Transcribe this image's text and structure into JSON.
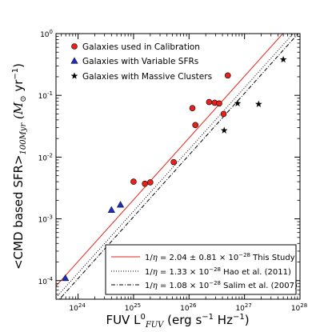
{
  "chart_data": {
    "type": "scatter",
    "title": "",
    "x_scale": "log",
    "y_scale": "log",
    "xlim": [
      4e+23,
      1e+28
    ],
    "ylim": [
      5e-05,
      1
    ],
    "grid": false,
    "legend_upper": "top-left",
    "legend_lower": "bottom-right",
    "xlabel": {
      "main": "FUV L",
      "sup": "0",
      "sub": "FUV",
      "unit_open": " (erg s",
      "unit_exp1": "−1",
      "unit_mid": " Hz",
      "unit_exp2": "−1",
      "unit_close": ")"
    },
    "ylabel": {
      "main": "<CMD based SFR>",
      "sub": "100Myr",
      "unit_open": " (M",
      "unit_sub": "⊙",
      "unit_mid": " yr",
      "unit_exp": "−1",
      "unit_close": ")"
    },
    "x_ticks": [
      {
        "v": 1e+24,
        "base": "10",
        "exp": "24"
      },
      {
        "v": 1e+25,
        "base": "10",
        "exp": "25"
      },
      {
        "v": 1e+26,
        "base": "10",
        "exp": "26"
      },
      {
        "v": 1e+27,
        "base": "10",
        "exp": "27"
      },
      {
        "v": 1e+28,
        "base": "10",
        "exp": "28"
      }
    ],
    "y_ticks": [
      {
        "v": 0.0001,
        "base": "10",
        "exp": "-4"
      },
      {
        "v": 0.001,
        "base": "10",
        "exp": "-3"
      },
      {
        "v": 0.01,
        "base": "10",
        "exp": "-2"
      },
      {
        "v": 0.1,
        "base": "10",
        "exp": "-1"
      },
      {
        "v": 1,
        "base": "10",
        "exp": "0"
      }
    ],
    "series": [
      {
        "name": "Galaxies used in Calibration",
        "marker": "circle",
        "color": "#e8221b",
        "points": [
          [
            1e+25,
            0.004
          ],
          [
            1.6e+25,
            0.0037
          ],
          [
            2e+25,
            0.0039
          ],
          [
            5.3e+25,
            0.0083
          ],
          [
            1.15e+26,
            0.062
          ],
          [
            1.3e+26,
            0.033
          ],
          [
            2.3e+26,
            0.078
          ],
          [
            2.9e+26,
            0.076
          ],
          [
            3.5e+26,
            0.074
          ],
          [
            4.2e+26,
            0.05
          ],
          [
            5e+26,
            0.21
          ]
        ]
      },
      {
        "name": "Galaxies with Variable SFRs",
        "marker": "triangle",
        "color": "#1d2bc2",
        "points": [
          [
            5.9e+23,
            0.00011
          ],
          [
            4e+24,
            0.0014
          ],
          [
            5.8e+24,
            0.0017
          ]
        ]
      },
      {
        "name": "Galaxies with Massive Clusters",
        "marker": "star",
        "color": "#000000",
        "points": [
          [
            4.3e+26,
            0.027
          ],
          [
            7.5e+26,
            0.074
          ],
          [
            1.8e+27,
            0.072
          ],
          [
            5e+27,
            0.38
          ]
        ]
      }
    ],
    "fits": [
      {
        "style": "solid",
        "color": "#e8221b",
        "coef": 2.04e-28,
        "label_prefix": "1/",
        "label_eta": "η",
        "label_eq": " = 2.04 ± 0.81 × 10",
        "label_exp": "−28",
        "label_ref": " This Study"
      },
      {
        "style": "dotted",
        "color": "#000000",
        "coef": 1.33e-28,
        "label_prefix": "1/",
        "label_eta": "η",
        "label_eq": " = 1.33 × 10",
        "label_exp": "−28",
        "label_ref": " Hao et al. (2011)"
      },
      {
        "style": "dashdot",
        "color": "#000000",
        "coef": 1.08e-28,
        "label_prefix": "1/",
        "label_eta": "η",
        "label_eq": " = 1.08 × 10",
        "label_exp": "−28",
        "label_ref": " Salim et al. (2007)"
      }
    ]
  }
}
